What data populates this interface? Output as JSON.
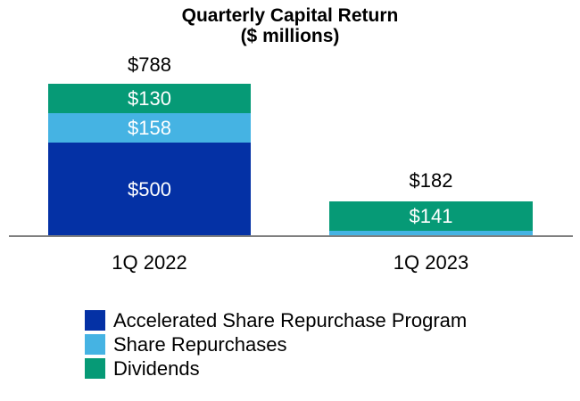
{
  "chart_data": {
    "type": "bar",
    "stacked": true,
    "title": "Quarterly Capital Return",
    "subtitle": "($ millions)",
    "categories": [
      "1Q 2022",
      "1Q 2023"
    ],
    "series": [
      {
        "name": "Accelerated Share Repurchase Program",
        "color": "#0431A5",
        "values": [
          500,
          0
        ]
      },
      {
        "name": "Share Repurchases",
        "color": "#45B3E3",
        "values": [
          158,
          41
        ]
      },
      {
        "name": "Dividends",
        "color": "#069A76",
        "values": [
          130,
          141
        ]
      }
    ],
    "totals": [
      788,
      182
    ],
    "value_prefix": "$",
    "grid": false,
    "y_axis_visible": false,
    "legend_position": "bottom-left"
  },
  "title": {
    "line1": "Quarterly Capital Return",
    "line2": "($ millions)"
  },
  "bars": {
    "q1_2022": {
      "label": "1Q 2022",
      "total": "$788",
      "dividends": "$130",
      "share_repurchases": "$158",
      "asr": "$500"
    },
    "q1_2023": {
      "label": "1Q 2023",
      "total": "$182",
      "dividends": "$141"
    }
  },
  "legend": {
    "items": [
      {
        "label": "Accelerated Share Repurchase Program",
        "color": "#0431A5"
      },
      {
        "label": "Share Repurchases",
        "color": "#45B3E3"
      },
      {
        "label": "Dividends",
        "color": "#069A76"
      }
    ]
  },
  "colors": {
    "axis_line": "#7F7F7F",
    "asr_blue": "#0431A5",
    "repurchase_light_blue": "#45B3E3",
    "dividend_green": "#069A76"
  }
}
